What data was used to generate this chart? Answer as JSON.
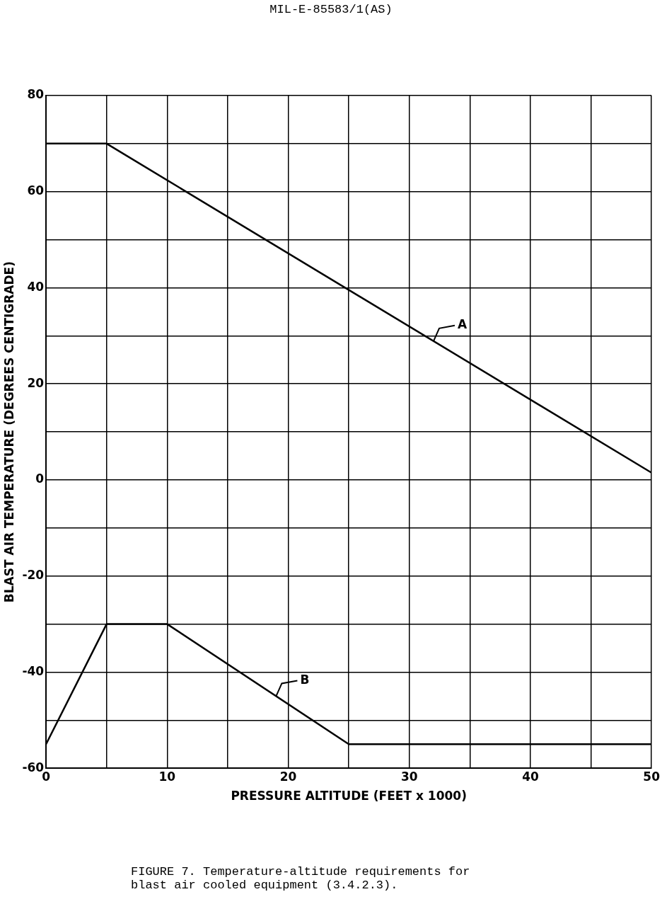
{
  "chart_data": {
    "type": "line",
    "xlabel": "PRESSURE ALTITUDE (FEET x 1000)",
    "ylabel": "BLAST AIR TEMPERATURE (DEGREES CENTIGRADE)",
    "annotations": [
      "MIL-E-85583/1(AS)",
      "FIGURE 7.  Temperature-altitude requirements for blast air cooled equipment (3.4.2.3)."
    ],
    "series": [
      {
        "name": "A",
        "color": "#000000",
        "x": [
          0,
          5,
          50
        ],
        "values": [
          70,
          70,
          1.5
        ]
      },
      {
        "name": "B",
        "color": "#000000",
        "x": [
          0,
          5,
          10,
          25,
          50
        ],
        "values": [
          -55,
          -30,
          -30,
          -55,
          -55
        ]
      }
    ],
    "xlim": [
      0,
      50
    ],
    "xticks": [
      0,
      {
        "value": 5,
        "label": null
      },
      10,
      {
        "value": 15,
        "label": null
      },
      20,
      {
        "value": 25,
        "label": null
      },
      30,
      {
        "value": 35,
        "label": null
      },
      40,
      {
        "value": 45,
        "label": null
      },
      50
    ],
    "ylim": [
      -60,
      80
    ],
    "yticks": [
      -60,
      {
        "value": -50,
        "label": null
      },
      -40,
      {
        "value": -30,
        "label": null
      },
      -20,
      {
        "value": -10,
        "label": null
      },
      0,
      {
        "value": 10,
        "label": null
      },
      20,
      {
        "value": 30,
        "label": null
      },
      40,
      {
        "value": 50,
        "label": null
      },
      60,
      {
        "value": 70,
        "label": null
      },
      80
    ],
    "grid": true,
    "legend": false,
    "marker": "none",
    "line_style": "solid"
  }
}
